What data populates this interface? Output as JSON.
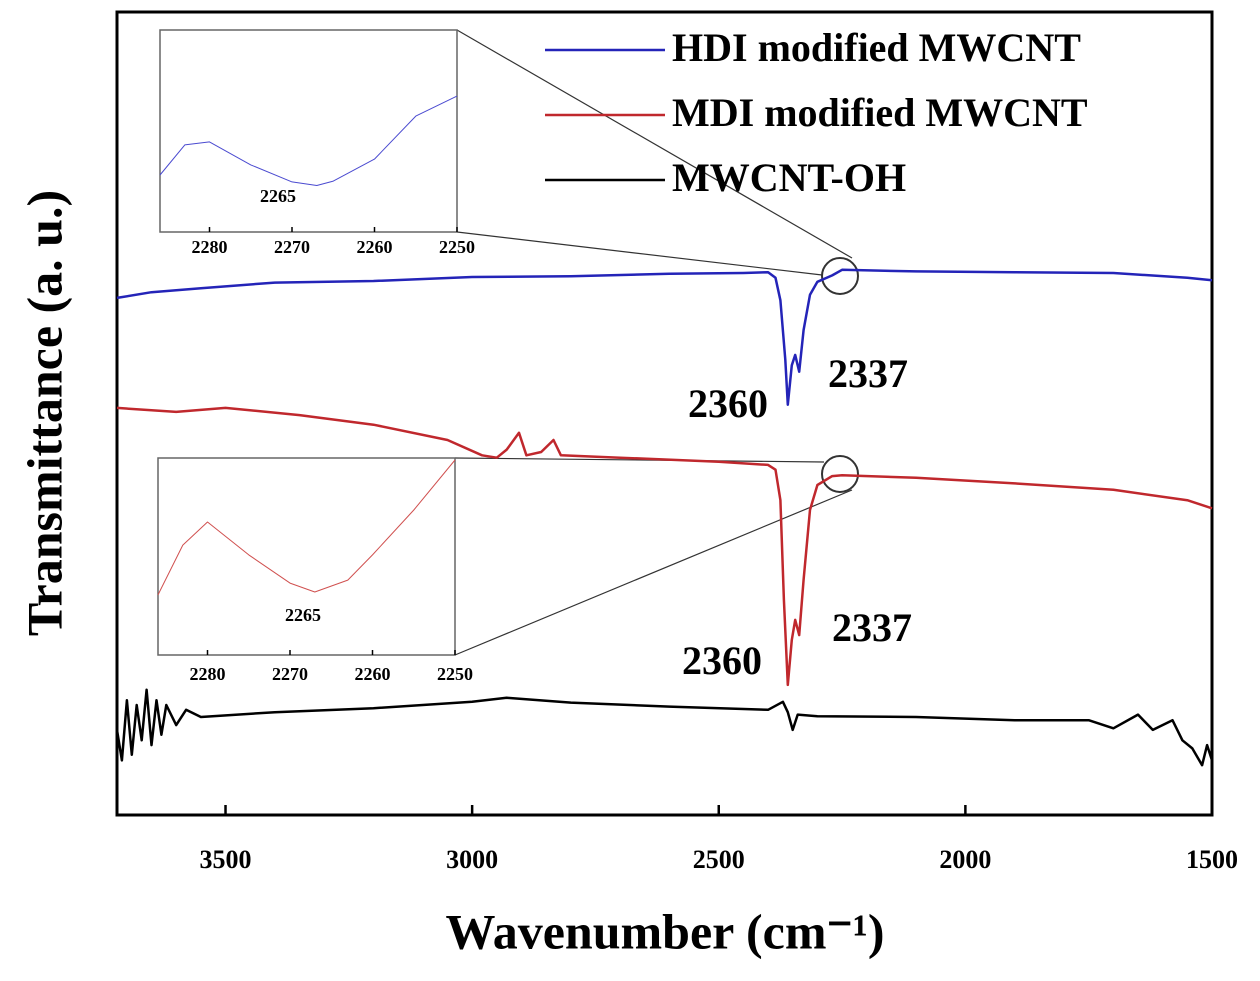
{
  "chart_data": [
    {
      "type": "line",
      "x_label": "Wavenumber (cm⁻¹)",
      "y_label": "Transmittance (a. u.)",
      "xlim": [
        3720,
        1500
      ],
      "xticks": [
        3500,
        3000,
        2500,
        2000,
        1500
      ],
      "ylim": [
        0,
        100
      ],
      "series": [
        {
          "name": "HDI modified MWCNT",
          "color": "#2424b8",
          "x": [
            3720,
            3650,
            3550,
            3400,
            3200,
            3000,
            2800,
            2600,
            2450,
            2400,
            2385,
            2375,
            2365,
            2360,
            2352,
            2345,
            2337,
            2328,
            2315,
            2300,
            2270,
            2250,
            2100,
            1900,
            1700,
            1550,
            1500
          ],
          "values": [
            64.4,
            65.1,
            65.6,
            66.3,
            66.5,
            67.0,
            67.1,
            67.4,
            67.5,
            67.6,
            66.9,
            64.1,
            56.7,
            51.1,
            56.0,
            57.3,
            55.2,
            60.4,
            64.8,
            66.4,
            67.2,
            67.9,
            67.7,
            67.6,
            67.5,
            66.9,
            66.6
          ]
        },
        {
          "name": "MDI modified MWCNT",
          "color": "#c0282d",
          "x": [
            3720,
            3600,
            3500,
            3350,
            3200,
            3050,
            2980,
            2950,
            2930,
            2905,
            2890,
            2860,
            2835,
            2820,
            2700,
            2500,
            2400,
            2385,
            2375,
            2368,
            2360,
            2352,
            2345,
            2337,
            2328,
            2315,
            2300,
            2270,
            2250,
            2100,
            1900,
            1700,
            1550,
            1500
          ],
          "values": [
            50.7,
            50.2,
            50.7,
            49.8,
            48.6,
            46.7,
            44.8,
            44.5,
            45.5,
            47.6,
            44.8,
            45.2,
            46.7,
            44.8,
            44.5,
            44.0,
            43.6,
            43.0,
            39.2,
            26.8,
            16.2,
            21.8,
            24.3,
            22.4,
            29.3,
            38.0,
            41.1,
            42.2,
            42.3,
            42.0,
            41.3,
            40.5,
            39.2,
            38.2
          ]
        },
        {
          "name": "MWCNT-OH",
          "color": "#000000",
          "x": [
            3720,
            3710,
            3700,
            3690,
            3680,
            3670,
            3660,
            3650,
            3640,
            3630,
            3620,
            3600,
            3580,
            3550,
            3400,
            3200,
            3000,
            2930,
            2800,
            2600,
            2400,
            2370,
            2360,
            2350,
            2340,
            2300,
            2100,
            1900,
            1750,
            1700,
            1650,
            1620,
            1580,
            1560,
            1540,
            1520,
            1510,
            1500
          ],
          "values": [
            10.6,
            6.8,
            14.3,
            7.5,
            13.7,
            9.3,
            15.6,
            8.7,
            14.3,
            10.0,
            13.7,
            11.2,
            13.1,
            12.2,
            12.8,
            13.3,
            14.1,
            14.6,
            14.0,
            13.5,
            13.1,
            14.1,
            12.8,
            10.6,
            12.5,
            12.3,
            12.2,
            11.8,
            11.8,
            10.8,
            12.5,
            10.6,
            11.8,
            9.3,
            8.3,
            6.2,
            8.7,
            6.8
          ]
        }
      ],
      "annotations": [
        "2360",
        "2337",
        "2360",
        "2337"
      ]
    },
    {
      "type": "line",
      "xlim": [
        2286,
        2250
      ],
      "xticks": [
        2280,
        2270,
        2260,
        2250
      ],
      "ylim": [
        0,
        100
      ],
      "series": [
        {
          "color": "#4a4ad0",
          "x": [
            2286,
            2283,
            2280,
            2275,
            2270,
            2267,
            2265,
            2260,
            2255,
            2250
          ],
          "values": [
            28.2,
            43.1,
            44.6,
            33.2,
            24.8,
            23.0,
            25.2,
            36.1,
            57.4,
            67.3
          ]
        }
      ],
      "annotations": [
        "2265"
      ]
    },
    {
      "type": "line",
      "xlim": [
        2286,
        2250
      ],
      "xticks": [
        2280,
        2270,
        2260,
        2250
      ],
      "ylim": [
        0,
        100
      ],
      "series": [
        {
          "color": "#d0504f",
          "x": [
            2286,
            2283,
            2280,
            2275,
            2270,
            2267,
            2263,
            2260,
            2255,
            2250
          ],
          "values": [
            30.5,
            55.8,
            67.5,
            50.8,
            36.5,
            32.0,
            38.0,
            50.8,
            73.6,
            99.0
          ]
        }
      ],
      "annotations": [
        "2265"
      ]
    }
  ]
}
